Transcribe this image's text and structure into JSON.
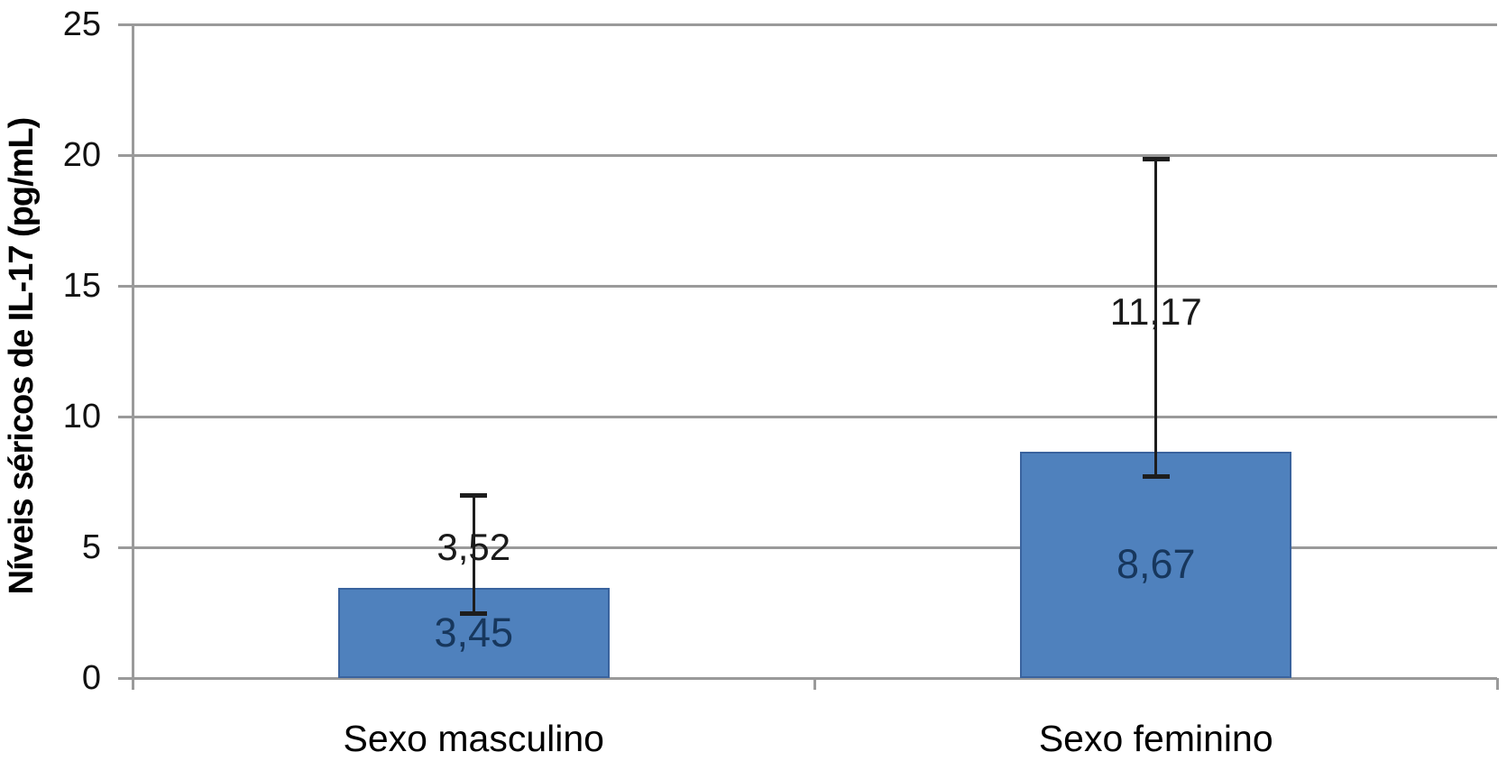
{
  "chart_data": {
    "type": "bar",
    "title": "",
    "xlabel": "",
    "ylabel": "Níveis séricos de IL-17 (pg/mL)",
    "ylim": [
      0,
      25
    ],
    "yticks": [
      0,
      5,
      10,
      15,
      20,
      25
    ],
    "grid": true,
    "legend": false,
    "categories": [
      "Sexo masculino",
      "Sexo feminino"
    ],
    "values": [
      3.45,
      8.67
    ],
    "bars": [
      {
        "category": "Sexo masculino",
        "value": 3.45,
        "value_label": "3,45",
        "error_low": 2.45,
        "error_high": 7.0,
        "error_label": "3,52",
        "error_label_at": 5.0
      },
      {
        "category": "Sexo feminino",
        "value": 8.67,
        "value_label": "8,67",
        "error_low": 7.7,
        "error_high": 19.85,
        "error_label": "11,17",
        "error_label_at": 14.0
      }
    ],
    "colors": {
      "bar_fill": "#4f81bd",
      "bar_border": "#3a639e",
      "value_label_text": "#17375d",
      "grid_line": "#9a9a9a",
      "axis_line": "#9a9a9a",
      "error_bar": "#1d1d1d",
      "label_text": "#000000"
    }
  }
}
